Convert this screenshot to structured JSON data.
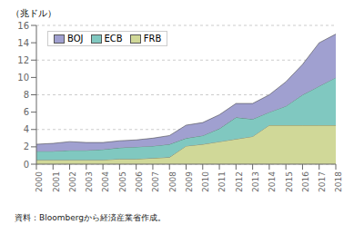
{
  "chart_data": {
    "type": "area",
    "stacked": true,
    "y_label": "（兆ドル）",
    "annotations": [
      "資料：Bloombergから経済産業省作成。"
    ],
    "x": [
      2000,
      2001,
      2002,
      2003,
      2004,
      2005,
      2006,
      2007,
      2008,
      2009,
      2010,
      2011,
      2012,
      2013,
      2014,
      2015,
      2016,
      2017,
      2018
    ],
    "xlim": [
      2000,
      2018
    ],
    "xticks": [
      2000,
      2001,
      2002,
      2003,
      2004,
      2005,
      2006,
      2007,
      2008,
      2009,
      2010,
      2011,
      2012,
      2013,
      2014,
      2015,
      2016,
      2017,
      2018
    ],
    "ylim": [
      0,
      16
    ],
    "yticks": [
      0,
      2,
      4,
      6,
      8,
      10,
      12,
      14,
      16
    ],
    "grid": true,
    "legend": "upper left",
    "series": [
      {
        "name": "FRB",
        "color": "#d0d898",
        "values": [
          0.5,
          0.5,
          0.5,
          0.5,
          0.5,
          0.6,
          0.6,
          0.7,
          0.8,
          2.1,
          2.3,
          2.6,
          2.9,
          3.2,
          4.5,
          4.5,
          4.5,
          4.5,
          4.5
        ]
      },
      {
        "name": "ECB",
        "color": "#80c8c0",
        "values": [
          1.0,
          1.0,
          1.1,
          1.1,
          1.2,
          1.3,
          1.4,
          1.4,
          1.5,
          0.9,
          1.0,
          1.5,
          2.5,
          2.0,
          1.5,
          2.2,
          3.5,
          4.5,
          5.5
        ]
      },
      {
        "name": "BOJ",
        "color": "#a0a0d0",
        "values": [
          0.8,
          0.9,
          1.0,
          0.9,
          0.8,
          0.8,
          0.8,
          0.9,
          1.0,
          1.5,
          1.5,
          1.6,
          1.6,
          1.8,
          2.0,
          2.8,
          3.5,
          5.0,
          5.0
        ]
      }
    ]
  }
}
